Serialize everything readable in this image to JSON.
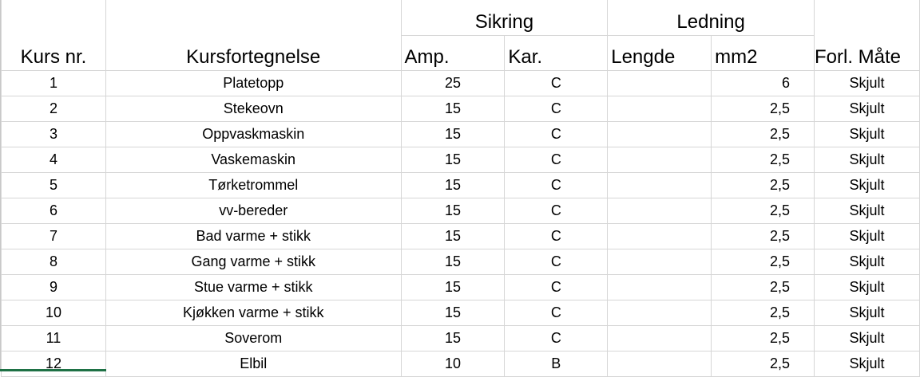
{
  "group_headers": {
    "sikring": "Sikring",
    "ledning": "Ledning"
  },
  "columns": [
    "Kurs nr.",
    "Kursfortegnelse",
    "Amp.",
    "Kar.",
    "Lengde",
    "mm2",
    "Forl. Måte"
  ],
  "rows": [
    [
      "1",
      "Platetopp",
      "25",
      "C",
      "",
      "6",
      "Skjult"
    ],
    [
      "2",
      "Stekeovn",
      "15",
      "C",
      "",
      "2,5",
      "Skjult"
    ],
    [
      "3",
      "Oppvaskmaskin",
      "15",
      "C",
      "",
      "2,5",
      "Skjult"
    ],
    [
      "4",
      "Vaskemaskin",
      "15",
      "C",
      "",
      "2,5",
      "Skjult"
    ],
    [
      "5",
      "Tørketrommel",
      "15",
      "C",
      "",
      "2,5",
      "Skjult"
    ],
    [
      "6",
      "vv-bereder",
      "15",
      "C",
      "",
      "2,5",
      "Skjult"
    ],
    [
      "7",
      "Bad varme + stikk",
      "15",
      "C",
      "",
      "2,5",
      "Skjult"
    ],
    [
      "8",
      "Gang varme + stikk",
      "15",
      "C",
      "",
      "2,5",
      "Skjult"
    ],
    [
      "9",
      "Stue varme + stikk",
      "15",
      "C",
      "",
      "2,5",
      "Skjult"
    ],
    [
      "10",
      "Kjøkken varme + stikk",
      "15",
      "C",
      "",
      "2,5",
      "Skjult"
    ],
    [
      "11",
      "Soverom",
      "15",
      "C",
      "",
      "2,5",
      "Skjult"
    ],
    [
      "12",
      "Elbil",
      "10",
      "B",
      "",
      "2,5",
      "Skjult"
    ]
  ],
  "colors": {
    "gridline": "#d6d6d6",
    "selection": "#1e7145"
  }
}
